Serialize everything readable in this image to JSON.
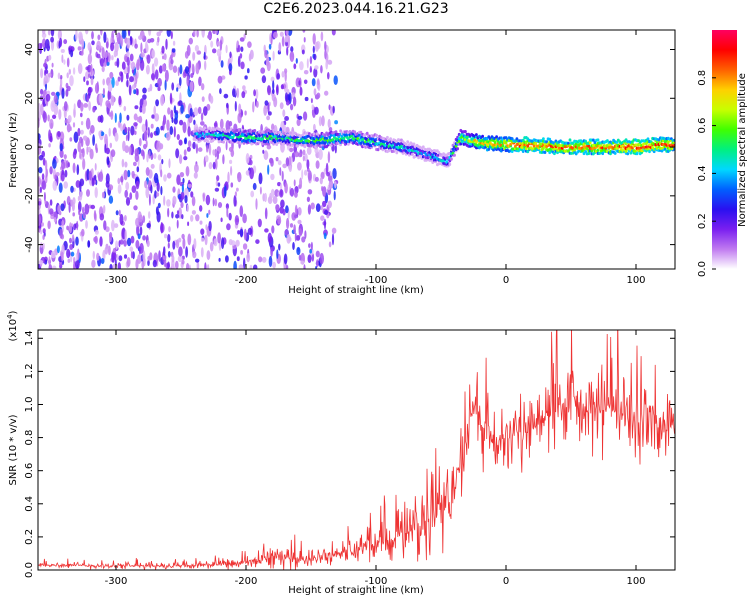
{
  "title": "C2E6.2023.044.16.21.G23",
  "chart_data": [
    {
      "type": "heatmap",
      "xlabel": "Height of straight line (km)",
      "ylabel": "Frequency (Hz)",
      "xlim": [
        -360,
        130
      ],
      "ylim": [
        -50,
        48
      ],
      "xticks": [
        -300,
        -200,
        -100,
        0,
        100
      ],
      "xtick_labels": [
        "-300",
        "-200",
        "-100",
        "0",
        "100"
      ],
      "yticks": [
        -40,
        -20,
        0,
        20,
        40
      ],
      "ytick_labels": [
        "-40",
        "-20",
        "0",
        "20",
        "40"
      ],
      "colorbar": {
        "label": "Normalized spectral amplitude",
        "range": [
          0.0,
          1.0
        ],
        "ticks": [
          0.0,
          0.2,
          0.4,
          0.6,
          0.8
        ],
        "tick_labels": [
          "0.0",
          "0.2",
          "0.4",
          "0.6",
          "0.8"
        ],
        "colors": [
          "#ffffff",
          "#c07af0",
          "#7a1ff0",
          "#2a10f0",
          "#0060ff",
          "#00d8ff",
          "#00f080",
          "#40ff00",
          "#c8ff00",
          "#ffd000",
          "#ff6000",
          "#ff0000",
          "#ff0060"
        ]
      },
      "noise_region_x": [
        -360,
        -130
      ],
      "noise_columns_x": [
        -175,
        -145
      ],
      "line_trace": {
        "x": [
          -240,
          -220,
          -200,
          -180,
          -160,
          -140,
          -120,
          -100,
          -80,
          -60,
          -45,
          -35,
          -20,
          0,
          20,
          40,
          60,
          80,
          100,
          120,
          130
        ],
        "y": [
          5,
          5,
          4,
          4,
          3,
          3,
          4,
          2,
          0,
          -3,
          -6,
          4,
          2,
          1,
          1,
          0,
          0,
          0,
          0,
          1,
          1
        ],
        "amplitude": [
          0.35,
          0.45,
          0.55,
          0.5,
          0.5,
          0.55,
          0.55,
          0.5,
          0.45,
          0.4,
          0.4,
          0.6,
          0.75,
          0.8,
          0.85,
          0.85,
          0.85,
          0.85,
          0.9,
          0.85,
          0.85
        ]
      }
    },
    {
      "type": "line",
      "xlabel": "Height of straight line (km)",
      "ylabel": "SNR (10 * v/v)",
      "exponent_label": "(x10",
      "exponent_value": "4",
      "exponent_close": ")",
      "xlim": [
        -360,
        130
      ],
      "ylim": [
        0,
        14500
      ],
      "xticks": [
        -300,
        -200,
        -100,
        0,
        100
      ],
      "xtick_labels": [
        "-300",
        "-200",
        "-100",
        "0",
        "100"
      ],
      "yticks": [
        0,
        2000,
        4000,
        6000,
        8000,
        10000,
        12000,
        14000
      ],
      "ytick_labels": [
        "0.0",
        "0.2",
        "0.4",
        "0.6",
        "0.8",
        "1.0",
        "1.2",
        "1.4"
      ],
      "series": [
        {
          "color": "#ee3333",
          "x": [
            -360,
            -300,
            -250,
            -200,
            -180,
            -150,
            -130,
            -110,
            -90,
            -70,
            -55,
            -45,
            -35,
            -30,
            -25,
            -20,
            -15,
            -10,
            0,
            20,
            40,
            60,
            80,
            100,
            120,
            130
          ],
          "y": [
            300,
            250,
            250,
            400,
            800,
            600,
            1000,
            1300,
            1800,
            2500,
            3200,
            4500,
            6000,
            8000,
            10000,
            8500,
            9000,
            7500,
            8000,
            8500,
            10000,
            9500,
            9800,
            9000,
            8500,
            9000
          ],
          "spread": [
            250,
            250,
            300,
            500,
            900,
            700,
            1000,
            1300,
            1800,
            2500,
            3200,
            3500,
            3500,
            3500,
            3500,
            3000,
            2800,
            2600,
            2600,
            3000,
            3500,
            3500,
            3500,
            3500,
            3000,
            3000
          ]
        }
      ]
    }
  ]
}
